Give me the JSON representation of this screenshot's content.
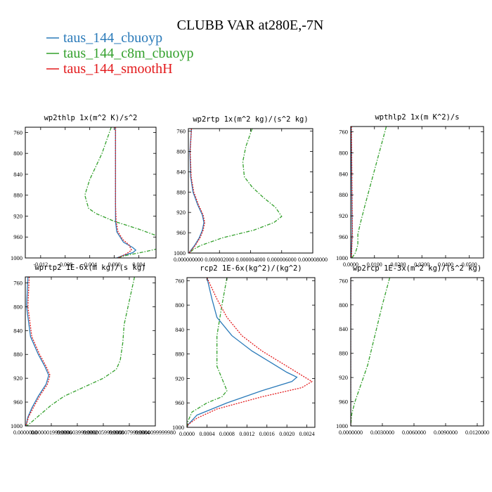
{
  "title": "CLUBB VAR at280E,-7N",
  "legend": [
    {
      "label": "taus_144_cbuoyp",
      "color": "#2a7ab9"
    },
    {
      "label": "taus_144_c8m_cbuoyp",
      "color": "#33a02c"
    },
    {
      "label": "taus_144_smoothH",
      "color": "#e31a1c"
    }
  ],
  "chart_data": [
    {
      "type": "line",
      "title": "wp2thlp  1x(m^2 K)/s^2",
      "xlim": [
        -0.0145,
        0.0068
      ],
      "xticks": [
        -0.012,
        -0.008,
        -0.004,
        0.0,
        0.004
      ],
      "xticklabels": [
        "-0.012",
        "-0.008",
        "-0.004",
        "0.000",
        "0.004"
      ],
      "ylim": [
        1000,
        750
      ],
      "yticks": [
        760,
        800,
        840,
        880,
        920,
        960,
        1000
      ],
      "yticklabels": [
        "760",
        "800",
        "840",
        "880",
        "920",
        "960",
        "1000"
      ],
      "series": [
        {
          "name": "taus_144_cbuoyp",
          "y": [
            750,
            800,
            850,
            900,
            930,
            950,
            970,
            980,
            985,
            990,
            995,
            1000
          ],
          "x": [
            0.0002,
            0.0002,
            0.0002,
            0.0002,
            0.0002,
            0.0004,
            0.0015,
            0.003,
            0.0035,
            0.003,
            0.0015,
            0.0004
          ]
        },
        {
          "name": "taus_144_c8m_cbuoyp",
          "y": [
            750,
            800,
            850,
            880,
            905,
            915,
            930,
            945,
            960,
            970,
            980,
            988,
            995,
            1000
          ],
          "x": [
            -0.0005,
            -0.002,
            -0.004,
            -0.0048,
            -0.0042,
            -0.003,
            0.0,
            0.004,
            0.0075,
            0.0085,
            0.008,
            0.005,
            0.002,
            0.0005
          ]
        },
        {
          "name": "taus_144_smoothH",
          "y": [
            750,
            800,
            850,
            900,
            930,
            950,
            965,
            975,
            985,
            992,
            1000
          ],
          "x": [
            0.0002,
            0.0002,
            0.0002,
            0.0002,
            0.0003,
            0.0006,
            0.0014,
            0.0024,
            0.0028,
            0.002,
            0.0006
          ]
        }
      ]
    },
    {
      "type": "line",
      "title": "wp2rtp  1x(m^2 kg)/(s^2 kg)",
      "xlim": [
        0.0,
        8e-06
      ],
      "xticks": [
        0.0,
        2e-06,
        4e-06,
        6e-06,
        8e-06
      ],
      "xticklabels": [
        "0.000000000",
        "0.000002000",
        "0.000004000",
        "0.000006000",
        "0.000008000"
      ],
      "ylim": [
        1000,
        755
      ],
      "yticks": [
        760,
        800,
        840,
        880,
        920,
        960,
        1000
      ],
      "yticklabels": [
        "760",
        "800",
        "840",
        "880",
        "920",
        "960",
        "1000"
      ],
      "series": [
        {
          "name": "taus_144_cbuoyp",
          "y": [
            755,
            800,
            850,
            880,
            905,
            925,
            940,
            955,
            970,
            985,
            995,
            1000
          ],
          "x": [
            2e-07,
            1e-07,
            1.5e-07,
            3e-07,
            6e-07,
            9e-07,
            1e-06,
            9e-07,
            7e-07,
            4e-07,
            1.5e-07,
            5e-08
          ]
        },
        {
          "name": "taus_144_c8m_cbuoyp",
          "y": [
            755,
            790,
            820,
            850,
            870,
            890,
            910,
            928,
            940,
            955,
            970,
            985,
            993,
            1000
          ],
          "x": [
            4.1e-06,
            3.7e-06,
            3.5e-06,
            3.6e-06,
            4.1e-06,
            4.8e-06,
            5.6e-06,
            6e-06,
            5.5e-06,
            4.2e-06,
            2.2e-06,
            8e-07,
            3e-07,
            1e-07
          ]
        },
        {
          "name": "taus_144_smoothH",
          "y": [
            755,
            800,
            850,
            880,
            905,
            925,
            940,
            955,
            970,
            985,
            995,
            1000
          ],
          "x": [
            2e-07,
            1.2e-07,
            1.8e-07,
            3.5e-07,
            6.5e-07,
            9.5e-07,
            1.05e-06,
            9.5e-07,
            7.5e-07,
            4.5e-07,
            1.8e-07,
            5e-08
          ]
        }
      ]
    },
    {
      "type": "line",
      "title": "wpthlp2  1x(m K^2)/s",
      "xlim": [
        0.0,
        0.056
      ],
      "xticks": [
        0.0,
        0.01,
        0.02,
        0.03,
        0.04,
        0.05
      ],
      "xticklabels": [
        "0.0000",
        "0.0100",
        "0.0200",
        "0.0300",
        "0.0400",
        "0.0500"
      ],
      "ylim": [
        1000,
        750
      ],
      "yticks": [
        760,
        800,
        840,
        880,
        920,
        960,
        1000
      ],
      "yticklabels": [
        "760",
        "800",
        "840",
        "880",
        "920",
        "960",
        "1000"
      ],
      "series": [
        {
          "name": "taus_144_cbuoyp",
          "y": [
            750,
            850,
            950,
            1000
          ],
          "x": [
            0.0002,
            0.0004,
            0.0006,
            0.0002
          ]
        },
        {
          "name": "taus_144_c8m_cbuoyp",
          "y": [
            750,
            800,
            850,
            900,
            935,
            955,
            975,
            990,
            1000
          ],
          "x": [
            0.015,
            0.012,
            0.009,
            0.006,
            0.004,
            0.003,
            0.003,
            0.002,
            0.0005
          ]
        },
        {
          "name": "taus_144_smoothH",
          "y": [
            750,
            850,
            950,
            1000
          ],
          "x": [
            0.0003,
            0.0005,
            0.0007,
            0.0003
          ]
        }
      ]
    },
    {
      "type": "line",
      "title": "wprtp2  1E-6x(m kg)/(s kg)",
      "xlim": [
        0.0,
        9.999998e-06
      ],
      "xticks": [
        0.0,
        1.9999996e-06,
        3.9999992e-06,
        5.9999988e-06,
        7.9999984e-06,
        9.999998e-06
      ],
      "xticklabels": [
        "0.0000000",
        "0.0000019999996",
        "0.0000039999992",
        "0.0000059999988",
        "0.0000079999984",
        "0.0000099999980"
      ],
      "ylim": [
        1000,
        750
      ],
      "yticks": [
        760,
        800,
        840,
        880,
        920,
        960,
        1000
      ],
      "yticklabels": [
        "760",
        "800",
        "840",
        "880",
        "920",
        "960",
        "1000"
      ],
      "series": [
        {
          "name": "taus_144_cbuoyp",
          "y": [
            750,
            800,
            850,
            880,
            900,
            915,
            930,
            950,
            970,
            985,
            1000
          ],
          "x": [
            2e-07,
            1e-07,
            4e-07,
            1e-06,
            1.5e-06,
            1.8e-06,
            1.6e-06,
            1e-06,
            5e-07,
            2e-07,
            5e-08
          ]
        },
        {
          "name": "taus_144_c8m_cbuoyp",
          "y": [
            750,
            790,
            830,
            860,
            890,
            905,
            920,
            935,
            950,
            965,
            980,
            995,
            1000
          ],
          "x": [
            8.4e-06,
            8e-06,
            7.6e-06,
            7.5e-06,
            7.3e-06,
            7e-06,
            6e-06,
            4.5e-06,
            3e-06,
            2e-06,
            1.2e-06,
            4e-07,
            1e-07
          ]
        },
        {
          "name": "taus_144_smoothH",
          "y": [
            750,
            800,
            850,
            880,
            900,
            915,
            930,
            950,
            970,
            985,
            1000
          ],
          "x": [
            3e-07,
            2e-07,
            5e-07,
            1.1e-06,
            1.6e-06,
            1.9e-06,
            1.7e-06,
            1.1e-06,
            6e-07,
            2.5e-07,
            5e-08
          ]
        }
      ]
    },
    {
      "type": "line",
      "title": "rcp2  1E-6x(kg^2)/(kg^2)",
      "xlim": [
        0.0,
        0.00256
      ],
      "xticks": [
        0.0,
        0.0004,
        0.0008,
        0.0012,
        0.0016,
        0.002,
        0.0024
      ],
      "xticklabels": [
        "0.0000",
        "0.0004",
        "0.0008",
        "0.0012",
        "0.0016",
        "0.0020",
        "0.0024"
      ],
      "ylim": [
        1000,
        755
      ],
      "yticks": [
        760,
        800,
        840,
        880,
        920,
        960,
        1000
      ],
      "yticklabels": [
        "760",
        "800",
        "840",
        "880",
        "920",
        "960",
        "1000"
      ],
      "series": [
        {
          "name": "taus_144_cbuoyp",
          "y": [
            755,
            790,
            820,
            850,
            875,
            895,
            910,
            918,
            925,
            940,
            960,
            980,
            995,
            1000
          ],
          "x": [
            0.0004,
            0.0005,
            0.0006,
            0.0009,
            0.0013,
            0.0017,
            0.002,
            0.0022,
            0.0021,
            0.0015,
            0.0008,
            0.0002,
            3e-05,
            0.0
          ]
        },
        {
          "name": "taus_144_c8m_cbuoyp",
          "y": [
            755,
            800,
            850,
            900,
            940,
            950,
            960,
            975,
            990,
            1000
          ],
          "x": [
            0.0008,
            0.0007,
            0.0006,
            0.0006,
            0.0008,
            0.0007,
            0.0004,
            0.0001,
            2e-05,
            0.0
          ]
        },
        {
          "name": "taus_144_smoothH",
          "y": [
            755,
            790,
            820,
            850,
            875,
            895,
            910,
            925,
            935,
            950,
            970,
            985,
            995,
            1000
          ],
          "x": [
            0.0004,
            0.0006,
            0.0008,
            0.0011,
            0.0015,
            0.0019,
            0.0022,
            0.0025,
            0.0023,
            0.0015,
            0.0006,
            0.0002,
            3e-05,
            0.0
          ]
        }
      ]
    },
    {
      "type": "line",
      "title": "wp2rcp  1E-3x(m^2 kg)/(s^2 kg)",
      "xlim": [
        0.0,
        0.0126
      ],
      "xticks": [
        0.0,
        0.003,
        0.006,
        0.009,
        0.012
      ],
      "xticklabels": [
        "0.0000000",
        "0.0030000",
        "0.0060000",
        "0.0090000",
        "0.0120000"
      ],
      "ylim": [
        1000,
        755
      ],
      "yticks": [
        760,
        800,
        840,
        880,
        920,
        960,
        1000
      ],
      "yticklabels": [
        "760",
        "800",
        "840",
        "880",
        "920",
        "960",
        "1000"
      ],
      "series": [
        {
          "name": "taus_144_cbuoyp",
          "y": [
            755,
            850,
            950,
            1000
          ],
          "x": [
            0.0,
            0.0,
            0.0,
            0.0
          ]
        },
        {
          "name": "taus_144_c8m_cbuoyp",
          "y": [
            755,
            800,
            850,
            900,
            930,
            960,
            980,
            1000
          ],
          "x": [
            0.0037,
            0.003,
            0.0023,
            0.0016,
            0.001,
            0.0004,
            0.0001,
            0.0
          ]
        },
        {
          "name": "taus_144_smoothH",
          "y": [
            755,
            850,
            950,
            1000
          ],
          "x": [
            0.0,
            0.0,
            0.0,
            0.0
          ]
        }
      ]
    }
  ]
}
